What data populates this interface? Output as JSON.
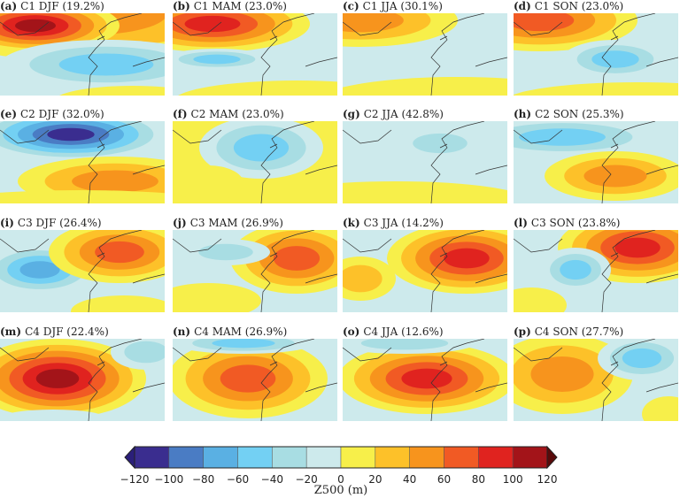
{
  "panels": [
    {
      "letter": "(a)",
      "title": "C1 DJF (19.2%)"
    },
    {
      "letter": "(b)",
      "title": "C1 MAM (23.0%)"
    },
    {
      "letter": "(c)",
      "title": "C1 JJA (30.1%)"
    },
    {
      "letter": "(d)",
      "title": "C1 SON (23.0%)"
    },
    {
      "letter": "(e)",
      "title": "C2 DJF (32.0%)"
    },
    {
      "letter": "(f)",
      "title": "C2 MAM (23.0%)"
    },
    {
      "letter": "(g)",
      "title": "C2 JJA (42.8%)"
    },
    {
      "letter": "(h)",
      "title": "C2 SON (25.3%)"
    },
    {
      "letter": "(i)",
      "title": "C3 DJF (26.4%)"
    },
    {
      "letter": "(j)",
      "title": "C3 MAM (26.9%)"
    },
    {
      "letter": "(k)",
      "title": "C3 JJA (14.2%)"
    },
    {
      "letter": "(l)",
      "title": "C3 SON (23.8%)"
    },
    {
      "letter": "(m)",
      "title": "C4 DJF (22.4%)"
    },
    {
      "letter": "(n)",
      "title": "C4 MAM (26.9%)"
    },
    {
      "letter": "(o)",
      "title": "C4 JJA (12.6%)"
    },
    {
      "letter": "(p)",
      "title": "C4 SON (27.7%)"
    }
  ],
  "colorbar": {
    "label": "Z500 (m)",
    "ticks": [
      "−120",
      "−100",
      "−80",
      "−60",
      "−40",
      "−20",
      "0",
      "20",
      "40",
      "60",
      "80",
      "100",
      "120"
    ],
    "range": [
      -120,
      120
    ],
    "step": 20,
    "colors": [
      "#3a2d8f",
      "#4a7cc4",
      "#5ab0e3",
      "#73d0f3",
      "#a8dde3",
      "#cdeaec",
      "#f7ef4a",
      "#fdc129",
      "#f7941d",
      "#f15a24",
      "#e0231f",
      "#a31419"
    ],
    "extend_low_color": "#2b1f7a",
    "extend_high_color": "#5a0a0a"
  }
}
